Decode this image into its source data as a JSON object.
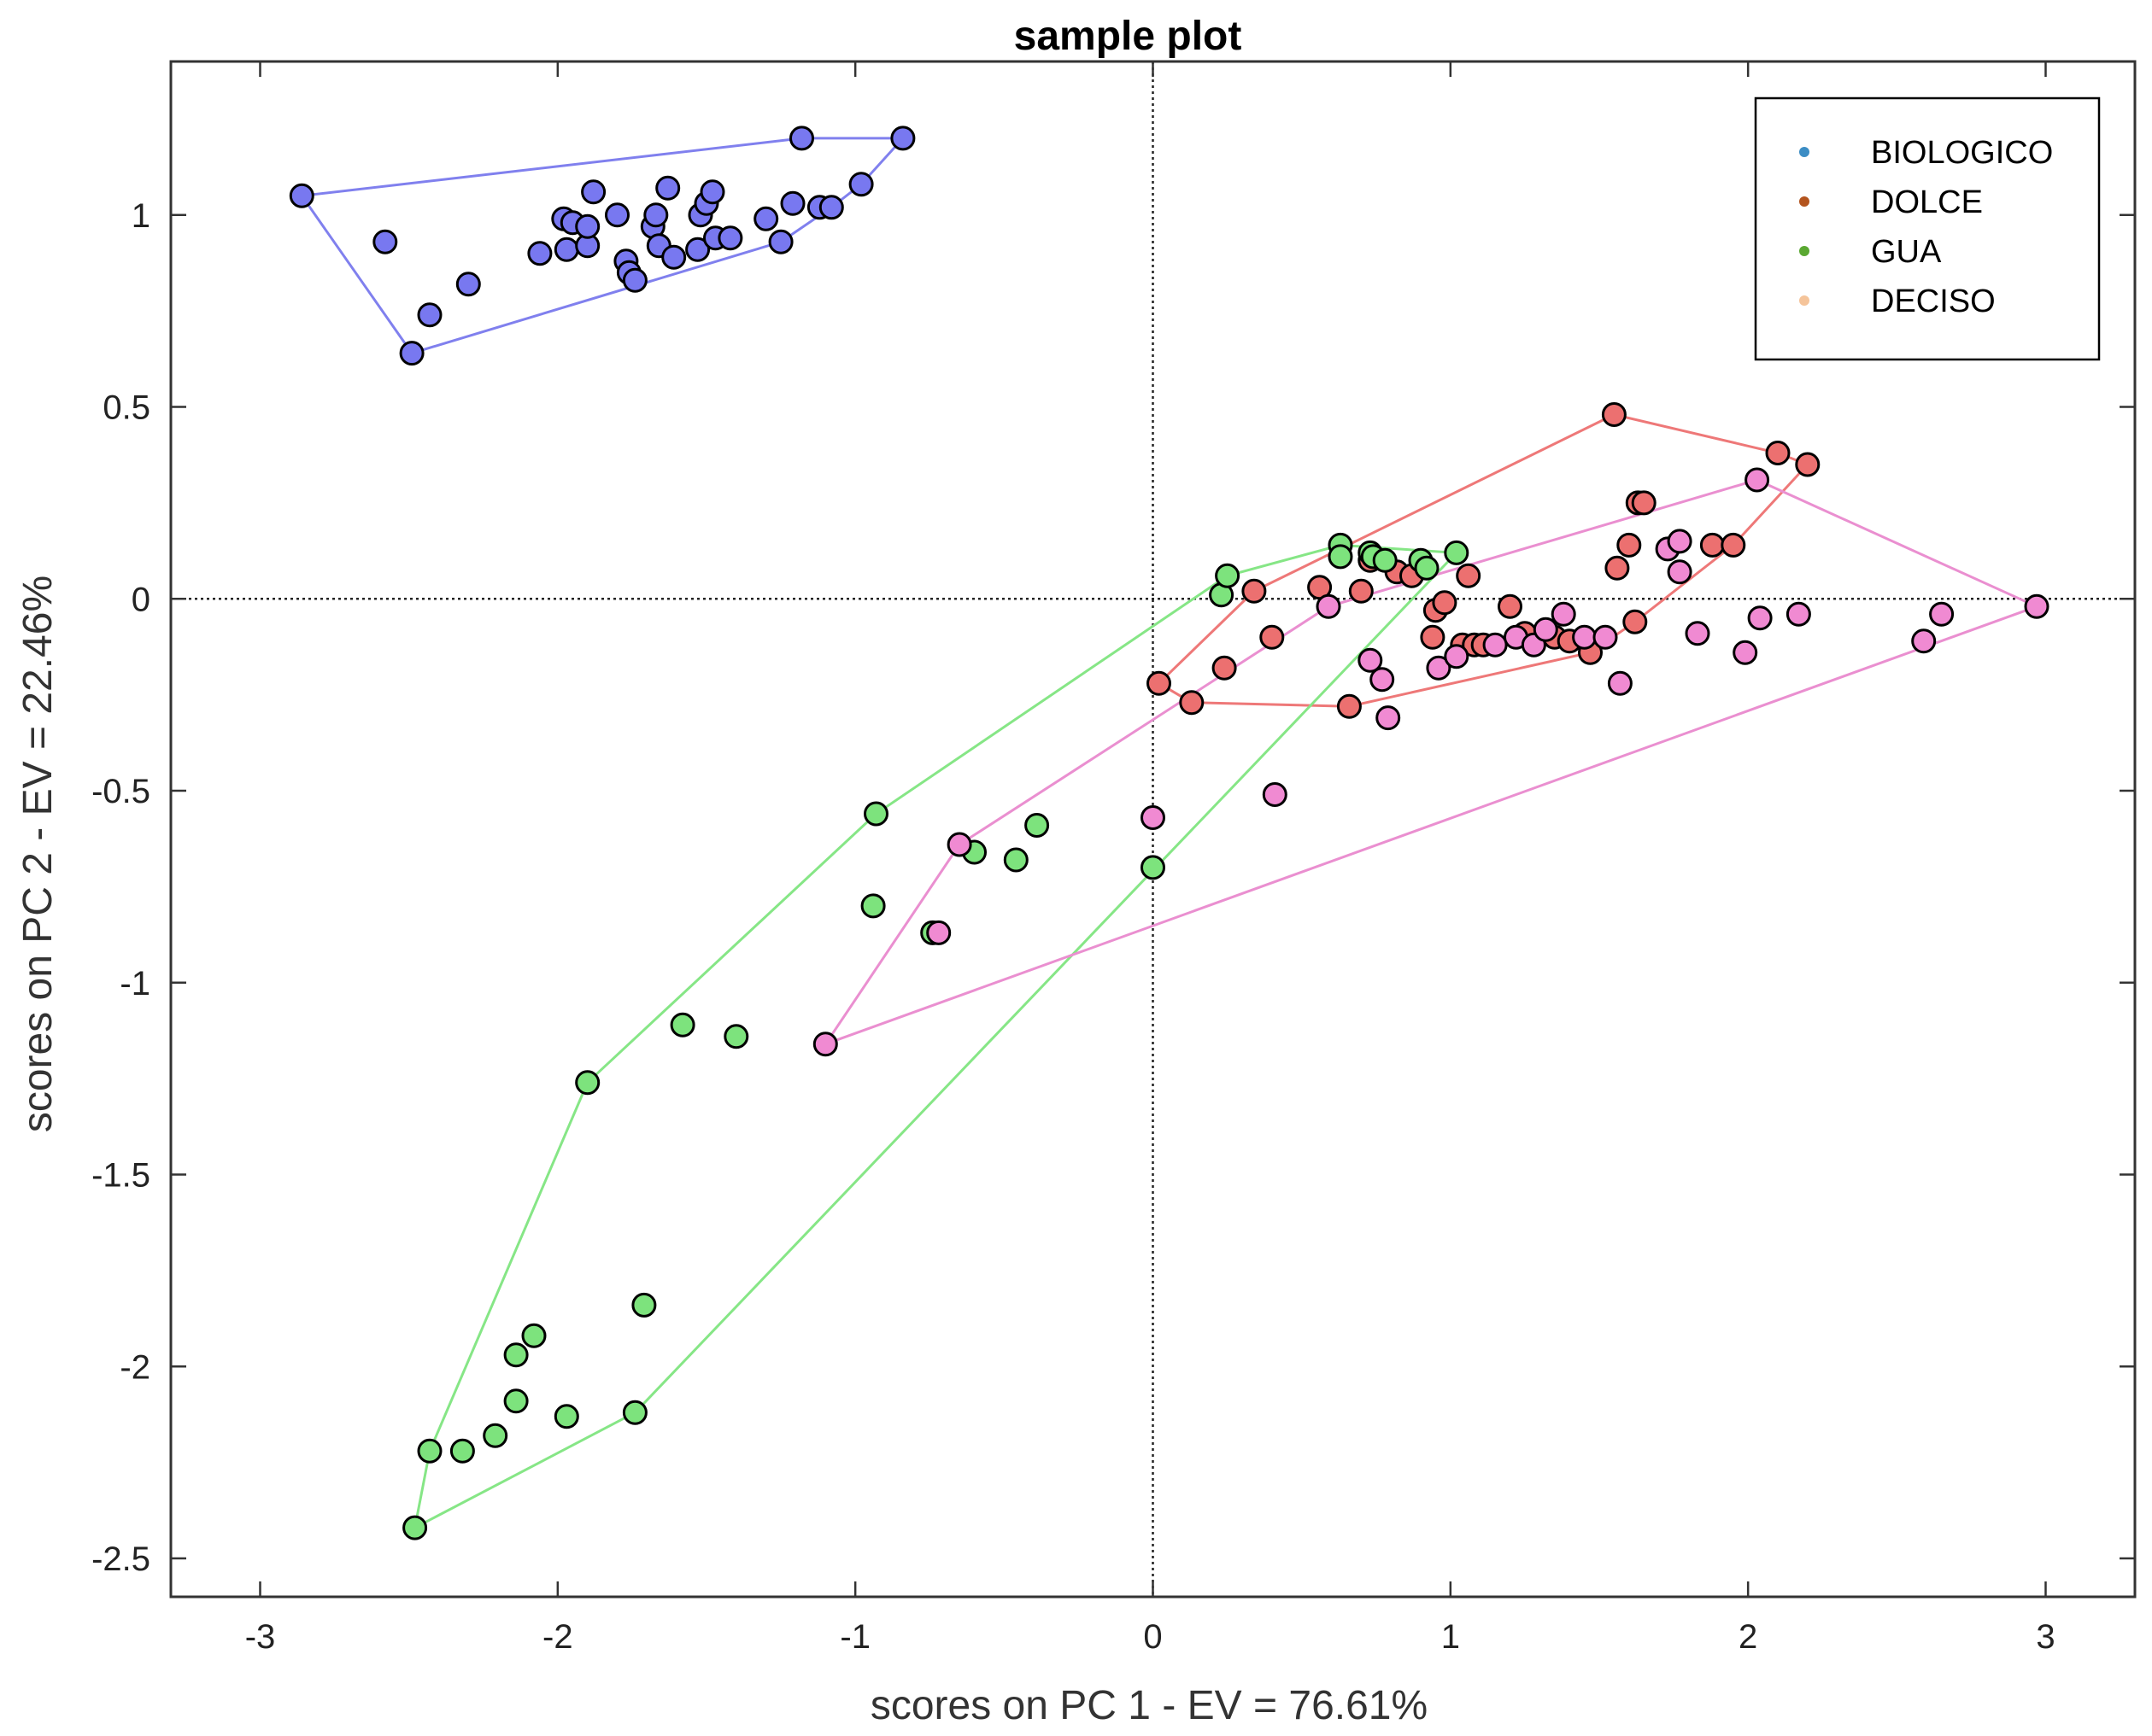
{
  "chart_data": {
    "type": "scatter",
    "title": "sample plot",
    "xlabel": "scores on PC 1 - EV = 76.61%",
    "ylabel": "scores on PC 2 - EV = 22.46%",
    "xlim": [
      -3.3,
      3.3
    ],
    "ylim": [
      -2.6,
      1.4
    ],
    "xticks": [
      -3,
      -2,
      -1,
      0,
      1,
      2,
      3
    ],
    "xtick_labels": [
      "-3",
      "-2",
      "-1",
      "0",
      "1",
      "2",
      "3"
    ],
    "yticks": [
      1,
      0.5,
      0,
      -0.5,
      -1,
      -1.5,
      -2,
      -2.5
    ],
    "ytick_labels": [
      "1",
      "0.5",
      "0",
      "-0.5",
      "-1",
      "-1.5",
      "-2",
      "-2.5"
    ],
    "reference_lines": {
      "x": 0,
      "y": 0
    },
    "legend": {
      "placement": "top-right"
    },
    "series": [
      {
        "name": "BIOLOGICO",
        "legend_color": "#3c8dc4",
        "marker_color": "#7878f0",
        "hull_color": "#8080ee",
        "points": [
          [
            -2.86,
            1.05
          ],
          [
            -2.58,
            0.93
          ],
          [
            -2.43,
            0.74
          ],
          [
            -2.3,
            0.82
          ],
          [
            -2.49,
            0.64
          ],
          [
            -2.06,
            0.9
          ],
          [
            -1.97,
            0.91
          ],
          [
            -1.98,
            0.99
          ],
          [
            -1.95,
            0.98
          ],
          [
            -1.9,
            0.92
          ],
          [
            -1.9,
            0.97
          ],
          [
            -1.88,
            1.06
          ],
          [
            -1.8,
            1.0
          ],
          [
            -1.77,
            0.88
          ],
          [
            -1.76,
            0.85
          ],
          [
            -1.74,
            0.83
          ],
          [
            -1.68,
            0.97
          ],
          [
            -1.67,
            1.0
          ],
          [
            -1.66,
            0.92
          ],
          [
            -1.63,
            1.07
          ],
          [
            -1.61,
            0.89
          ],
          [
            -1.53,
            0.91
          ],
          [
            -1.52,
            1.0
          ],
          [
            -1.5,
            1.03
          ],
          [
            -1.48,
            1.06
          ],
          [
            -1.47,
            0.94
          ],
          [
            -1.42,
            0.94
          ],
          [
            -1.3,
            0.99
          ],
          [
            -1.25,
            0.93
          ],
          [
            -1.21,
            1.03
          ],
          [
            -1.18,
            1.2
          ],
          [
            -1.12,
            1.02
          ],
          [
            -1.08,
            1.02
          ],
          [
            -0.98,
            1.08
          ],
          [
            -0.84,
            1.2
          ]
        ]
      },
      {
        "name": "DOLCE",
        "legend_color": "#b3541e",
        "marker_color": "#ec7070",
        "hull_color": "#ee7878",
        "points": [
          [
            0.02,
            -0.22
          ],
          [
            0.13,
            -0.27
          ],
          [
            0.24,
            -0.18
          ],
          [
            0.34,
            0.02
          ],
          [
            0.4,
            -0.1
          ],
          [
            0.56,
            0.03
          ],
          [
            0.66,
            -0.28
          ],
          [
            0.7,
            0.02
          ],
          [
            0.73,
            0.1
          ],
          [
            0.82,
            0.07
          ],
          [
            0.87,
            0.06
          ],
          [
            0.94,
            -0.1
          ],
          [
            0.95,
            -0.03
          ],
          [
            0.98,
            -0.01
          ],
          [
            1.04,
            -0.12
          ],
          [
            1.06,
            0.06
          ],
          [
            1.08,
            -0.12
          ],
          [
            1.11,
            -0.12
          ],
          [
            1.2,
            -0.02
          ],
          [
            1.25,
            -0.09
          ],
          [
            1.35,
            -0.1
          ],
          [
            1.4,
            -0.11
          ],
          [
            1.47,
            -0.14
          ],
          [
            1.55,
            0.48
          ],
          [
            1.56,
            0.08
          ],
          [
            1.6,
            0.14
          ],
          [
            1.62,
            -0.06
          ],
          [
            1.63,
            0.25
          ],
          [
            1.65,
            0.25
          ],
          [
            1.88,
            0.14
          ],
          [
            1.95,
            0.14
          ],
          [
            2.1,
            0.38
          ],
          [
            2.2,
            0.35
          ]
        ]
      },
      {
        "name": "GUA",
        "legend_color": "#5aa832",
        "marker_color": "#7de37d",
        "hull_color": "#86e686",
        "points": [
          [
            -2.48,
            -2.42
          ],
          [
            -2.43,
            -2.22
          ],
          [
            -2.32,
            -2.22
          ],
          [
            -2.21,
            -2.18
          ],
          [
            -2.14,
            -1.97
          ],
          [
            -2.14,
            -2.09
          ],
          [
            -2.08,
            -1.92
          ],
          [
            -1.97,
            -2.13
          ],
          [
            -1.9,
            -1.26
          ],
          [
            -1.74,
            -2.12
          ],
          [
            -1.71,
            -1.84
          ],
          [
            -1.58,
            -1.11
          ],
          [
            -1.4,
            -1.14
          ],
          [
            -0.93,
            -0.56
          ],
          [
            -0.94,
            -0.8
          ],
          [
            -0.74,
            -0.87
          ],
          [
            -0.6,
            -0.66
          ],
          [
            -0.46,
            -0.68
          ],
          [
            -0.39,
            -0.59
          ],
          [
            0.0,
            -0.7
          ],
          [
            0.23,
            0.01
          ],
          [
            0.25,
            0.06
          ],
          [
            0.63,
            0.14
          ],
          [
            0.63,
            0.11
          ],
          [
            0.73,
            0.12
          ],
          [
            0.74,
            0.11
          ],
          [
            0.78,
            0.1
          ],
          [
            0.9,
            0.1
          ],
          [
            0.92,
            0.08
          ],
          [
            1.02,
            0.12
          ]
        ]
      },
      {
        "name": "DECISO",
        "legend_color": "#f5c49a",
        "marker_color": "#f08ad2",
        "hull_color": "#ea8fd0",
        "points": [
          [
            -1.1,
            -1.16
          ],
          [
            -0.65,
            -0.64
          ],
          [
            -0.72,
            -0.87
          ],
          [
            0.0,
            -0.57
          ],
          [
            0.41,
            -0.51
          ],
          [
            0.59,
            -0.02
          ],
          [
            0.73,
            -0.16
          ],
          [
            0.77,
            -0.21
          ],
          [
            0.79,
            -0.31
          ],
          [
            0.96,
            -0.18
          ],
          [
            1.02,
            -0.15
          ],
          [
            1.15,
            -0.12
          ],
          [
            1.22,
            -0.1
          ],
          [
            1.28,
            -0.12
          ],
          [
            1.32,
            -0.08
          ],
          [
            1.38,
            -0.04
          ],
          [
            1.45,
            -0.1
          ],
          [
            1.52,
            -0.1
          ],
          [
            1.57,
            -0.22
          ],
          [
            1.73,
            0.13
          ],
          [
            1.77,
            0.15
          ],
          [
            1.77,
            0.07
          ],
          [
            1.83,
            -0.09
          ],
          [
            1.99,
            -0.14
          ],
          [
            2.03,
            0.31
          ],
          [
            2.04,
            -0.05
          ],
          [
            2.17,
            -0.04
          ],
          [
            2.59,
            -0.11
          ],
          [
            2.65,
            -0.04
          ],
          [
            2.97,
            -0.02
          ]
        ]
      }
    ]
  }
}
